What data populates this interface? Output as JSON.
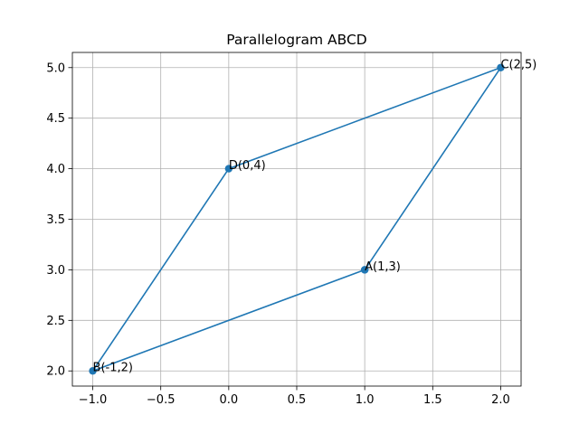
{
  "chart_data": {
    "type": "line",
    "title": "Parallelogram ABCD",
    "xlabel": "",
    "ylabel": "",
    "xlim": [
      -1.15,
      2.15
    ],
    "ylim": [
      1.85,
      5.15
    ],
    "xticks": [
      -1.0,
      -0.5,
      0.0,
      0.5,
      1.0,
      1.5,
      2.0
    ],
    "xtick_labels": [
      "−1.0",
      "−0.5",
      "0.0",
      "0.5",
      "1.0",
      "1.5",
      "2.0"
    ],
    "yticks": [
      2.0,
      2.5,
      3.0,
      3.5,
      4.0,
      4.5,
      5.0
    ],
    "ytick_labels": [
      "2.0",
      "2.5",
      "3.0",
      "3.5",
      "4.0",
      "4.5",
      "5.0"
    ],
    "grid": true,
    "series": [
      {
        "x": [
          1,
          -1,
          0,
          2,
          1
        ],
        "y": [
          3,
          2,
          4,
          5,
          3
        ],
        "color": "#1f77b4",
        "marker": "circle"
      }
    ],
    "annotations": [
      {
        "text": "A(1,3)",
        "x": 1,
        "y": 3
      },
      {
        "text": "B(-1,2)",
        "x": -1,
        "y": 2
      },
      {
        "text": "C(2,5)",
        "x": 2,
        "y": 5
      },
      {
        "text": "D(0,4)",
        "x": 0,
        "y": 4
      }
    ]
  },
  "colors": {
    "line": "#1f77b4",
    "grid": "#b0b0b0",
    "axes": "#000000",
    "background": "#ffffff"
  }
}
